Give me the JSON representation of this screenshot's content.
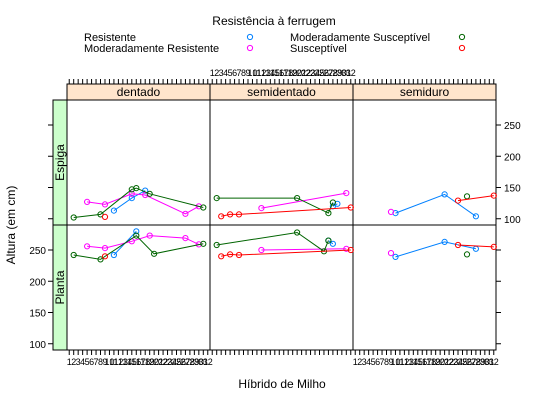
{
  "chart_data": {
    "type": "line",
    "layout": "lattice-xyplot",
    "title": "Resistência à ferrugem",
    "xlabel": "Híbrido de Milho",
    "ylabel": "Altura (em cm)",
    "x_ticks": [
      1,
      2,
      3,
      4,
      5,
      6,
      7,
      8,
      9,
      10,
      11,
      12,
      13,
      14,
      15,
      16,
      17,
      18,
      19,
      20,
      21,
      22,
      23,
      24,
      25,
      26,
      27,
      28,
      29,
      30,
      31,
      32
    ],
    "x_tick_labels": [
      "1",
      "2",
      "3",
      "4",
      "5",
      "6",
      "7",
      "8",
      "9",
      "10",
      "11",
      "12",
      "13",
      "14",
      "15",
      "16",
      "17",
      "18",
      "19",
      "20",
      "21",
      "22",
      "23",
      "24",
      "25",
      "26",
      "27",
      "28",
      "29",
      "30",
      "31",
      "32"
    ],
    "xlim": [
      0.5,
      32.5
    ],
    "ylim": [
      90,
      290
    ],
    "y_ticks": [
      100,
      150,
      200,
      250
    ],
    "y_tick_labels": [
      "100",
      "150",
      "200",
      "250"
    ],
    "grid": false,
    "legend_position": "top",
    "columns": [
      "dentado",
      "semidentado",
      "semiduro"
    ],
    "rows": [
      "Espiga",
      "Planta"
    ],
    "series_styles": [
      {
        "name": "Resistente",
        "color": "#0080ff"
      },
      {
        "name": "Moderadamente Resistente",
        "color": "#ff00ff"
      },
      {
        "name": "Moderadamente Susceptível",
        "color": "#006400"
      },
      {
        "name": "Susceptível",
        "color": "#ff0000"
      }
    ],
    "panels": [
      {
        "column": "dentado",
        "row": "Espiga",
        "series": [
          {
            "name": "Resistente",
            "points": [
              [
                11,
                113
              ],
              [
                15,
                133
              ],
              [
                18,
                145
              ]
            ]
          },
          {
            "name": "Moderadamente Resistente",
            "points": [
              [
                5,
                127
              ],
              [
                9,
                123
              ],
              [
                15,
                140
              ],
              [
                18,
                138
              ],
              [
                27,
                108
              ],
              [
                30,
                120
              ]
            ]
          },
          {
            "name": "Moderadamente Susceptível",
            "points": [
              [
                2,
                102
              ],
              [
                8,
                107
              ],
              [
                15,
                147
              ],
              [
                16,
                149
              ],
              [
                19,
                140
              ],
              [
                31,
                118
              ]
            ]
          },
          {
            "name": "Susceptível",
            "points": [
              [
                9,
                103
              ]
            ]
          }
        ]
      },
      {
        "column": "semidentado",
        "row": "Espiga",
        "series": [
          {
            "name": "Resistente",
            "points": [
              [
                28,
                120
              ],
              [
                29,
                124
              ]
            ]
          },
          {
            "name": "Moderadamente Resistente",
            "points": [
              [
                12,
                117
              ],
              [
                31,
                141
              ]
            ]
          },
          {
            "name": "Moderadamente Susceptível",
            "points": [
              [
                2,
                133
              ],
              [
                20,
                133
              ],
              [
                27,
                109
              ],
              [
                28,
                126
              ]
            ]
          },
          {
            "name": "Susceptível",
            "points": [
              [
                3,
                104
              ],
              [
                5,
                107
              ],
              [
                7,
                107
              ],
              [
                32,
                118
              ]
            ]
          }
        ]
      },
      {
        "column": "semiduro",
        "row": "Espiga",
        "series": [
          {
            "name": "Resistente",
            "points": [
              [
                10,
                109
              ],
              [
                21,
                139
              ],
              [
                28,
                104
              ]
            ]
          },
          {
            "name": "Moderadamente Resistente",
            "points": [
              [
                9,
                111
              ]
            ]
          },
          {
            "name": "Moderadamente Susceptível",
            "points": [
              [
                26,
                136
              ]
            ]
          },
          {
            "name": "Susceptível",
            "points": [
              [
                24,
                129
              ],
              [
                32,
                137
              ]
            ]
          }
        ]
      },
      {
        "column": "dentado",
        "row": "Planta",
        "series": [
          {
            "name": "Resistente",
            "points": [
              [
                11,
                242
              ],
              [
                16,
                280
              ]
            ]
          },
          {
            "name": "Moderadamente Resistente",
            "points": [
              [
                5,
                256
              ],
              [
                9,
                253
              ],
              [
                15,
                264
              ],
              [
                19,
                273
              ],
              [
                27,
                269
              ],
              [
                30,
                259
              ]
            ]
          },
          {
            "name": "Moderadamente Susceptível",
            "points": [
              [
                2,
                242
              ],
              [
                8,
                235
              ],
              [
                16,
                273
              ],
              [
                20,
                244
              ],
              [
                31,
                260
              ]
            ]
          },
          {
            "name": "Susceptível",
            "points": [
              [
                9,
                240
              ]
            ]
          }
        ]
      },
      {
        "column": "semidentado",
        "row": "Planta",
        "series": [
          {
            "name": "Resistente",
            "points": [
              [
                27,
                265
              ],
              [
                28,
                260
              ]
            ]
          },
          {
            "name": "Moderadamente Resistente",
            "points": [
              [
                12,
                250
              ],
              [
                31,
                252
              ]
            ]
          },
          {
            "name": "Moderadamente Susceptível",
            "points": [
              [
                2,
                258
              ],
              [
                20,
                278
              ],
              [
                26,
                248
              ],
              [
                27,
                265
              ]
            ]
          },
          {
            "name": "Susceptível",
            "points": [
              [
                3,
                240
              ],
              [
                5,
                243
              ],
              [
                7,
                242
              ],
              [
                32,
                250
              ]
            ]
          }
        ]
      },
      {
        "column": "semiduro",
        "row": "Planta",
        "series": [
          {
            "name": "Resistente",
            "points": [
              [
                10,
                239
              ],
              [
                21,
                263
              ],
              [
                28,
                252
              ]
            ]
          },
          {
            "name": "Moderadamente Resistente",
            "points": [
              [
                9,
                245
              ]
            ]
          },
          {
            "name": "Moderadamente Susceptível",
            "points": [
              [
                26,
                243
              ]
            ]
          },
          {
            "name": "Susceptível",
            "points": [
              [
                24,
                258
              ],
              [
                32,
                255
              ]
            ]
          }
        ]
      }
    ]
  }
}
